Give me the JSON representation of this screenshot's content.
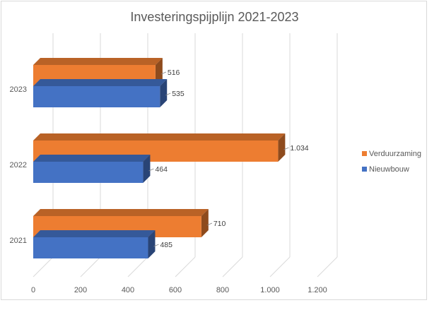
{
  "chart_data": {
    "type": "bar",
    "orientation": "horizontal",
    "title": "Investeringspijplijn 2021-2023",
    "categories": [
      "2021",
      "2022",
      "2023"
    ],
    "series": [
      {
        "name": "Nieuwbouw",
        "values": [
          485,
          464,
          535
        ],
        "color": "#4472c4"
      },
      {
        "name": "Verduurzaming",
        "values": [
          710,
          1034,
          516
        ],
        "color": "#ed7d31"
      }
    ],
    "data_labels": {
      "Nieuwbouw": [
        "485",
        "464",
        "535"
      ],
      "Verduurzaming": [
        "710",
        "1.034",
        "516"
      ]
    },
    "x_ticks": [
      "0",
      "200",
      "400",
      "600",
      "800",
      "1.000",
      "1.200"
    ],
    "xlim": [
      0,
      1200
    ],
    "grid": true,
    "legend_position": "right",
    "style": "3d"
  }
}
